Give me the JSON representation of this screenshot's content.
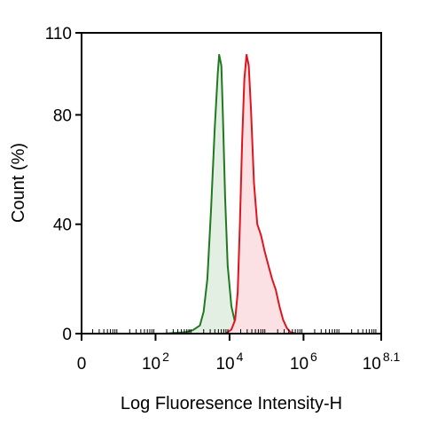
{
  "chart_data": {
    "type": "area",
    "title": "",
    "xlabel": "Log Fluoresence Intensity-H",
    "ylabel": "Count  (%)",
    "x_scale": "log10",
    "xlim": [
      0,
      8.1
    ],
    "ylim": [
      0,
      110
    ],
    "x_ticks": [
      {
        "base": "0",
        "exp": "",
        "value": 0
      },
      {
        "base": "10",
        "exp": "2",
        "value": 2
      },
      {
        "base": "10",
        "exp": "4",
        "value": 4
      },
      {
        "base": "10",
        "exp": "6",
        "value": 6
      },
      {
        "base": "10",
        "exp": "8.1",
        "value": 8.1
      }
    ],
    "y_ticks": [
      {
        "label": "0",
        "value": 0
      },
      {
        "label": "40",
        "value": 40
      },
      {
        "label": "80",
        "value": 80
      },
      {
        "label": "110",
        "value": 110
      }
    ],
    "grid": false,
    "legend": "none",
    "series": [
      {
        "color": "#1f7a1f",
        "fill": "#e3efe3",
        "points": [
          [
            2.2,
            0
          ],
          [
            2.8,
            0.5
          ],
          [
            3.0,
            1.2
          ],
          [
            3.2,
            3
          ],
          [
            3.3,
            8
          ],
          [
            3.4,
            20
          ],
          [
            3.5,
            45
          ],
          [
            3.6,
            75
          ],
          [
            3.68,
            95
          ],
          [
            3.72,
            102
          ],
          [
            3.78,
            98
          ],
          [
            3.82,
            80
          ],
          [
            3.88,
            50
          ],
          [
            3.95,
            25
          ],
          [
            4.05,
            10
          ],
          [
            4.15,
            4
          ],
          [
            4.3,
            1
          ],
          [
            4.5,
            0
          ]
        ]
      },
      {
        "color": "#e0141e",
        "fill": "#fbe1e4",
        "points": [
          [
            3.9,
            0
          ],
          [
            4.05,
            1.5
          ],
          [
            4.15,
            5
          ],
          [
            4.22,
            15
          ],
          [
            4.28,
            40
          ],
          [
            4.34,
            70
          ],
          [
            4.4,
            93
          ],
          [
            4.46,
            102
          ],
          [
            4.52,
            98
          ],
          [
            4.58,
            82
          ],
          [
            4.66,
            55
          ],
          [
            4.75,
            40
          ],
          [
            4.85,
            36
          ],
          [
            4.95,
            30
          ],
          [
            5.05,
            25
          ],
          [
            5.15,
            20
          ],
          [
            5.25,
            16
          ],
          [
            5.35,
            10
          ],
          [
            5.45,
            5
          ],
          [
            5.55,
            2
          ],
          [
            5.65,
            0.5
          ],
          [
            5.8,
            0
          ]
        ]
      }
    ]
  }
}
